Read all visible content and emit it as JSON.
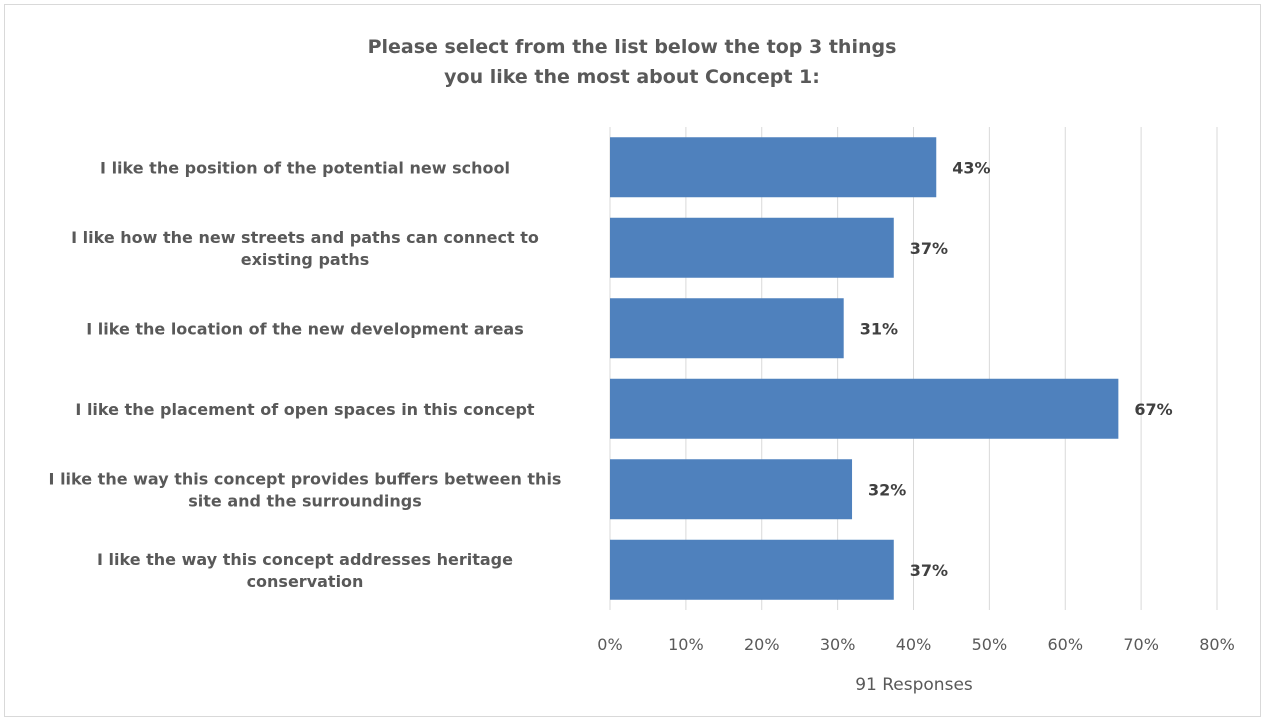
{
  "chart_data": {
    "type": "bar",
    "orientation": "horizontal",
    "title": [
      "Please select from the list below the top 3 things",
      "you like the most about Concept 1:"
    ],
    "categories": [
      [
        "I like the position of the potential new school"
      ],
      [
        "I like how the new streets and paths can connect to",
        "existing paths"
      ],
      [
        "I like the location of the new development areas"
      ],
      [
        "I like the placement of open spaces in this concept"
      ],
      [
        "I like the way this concept provides buffers between this",
        "site and the surroundings"
      ],
      [
        "I like the way this concept addresses heritage",
        "conservation"
      ]
    ],
    "values": [
      43,
      37.4,
      30.8,
      67,
      31.9,
      37.4
    ],
    "data_labels": [
      "43%",
      "37%",
      "31%",
      "67%",
      "32%",
      "37%"
    ],
    "xlim": [
      0,
      80
    ],
    "x_ticks": [
      0,
      10,
      20,
      30,
      40,
      50,
      60,
      70,
      80
    ],
    "x_tick_labels": [
      "0%",
      "10%",
      "20%",
      "30%",
      "40%",
      "50%",
      "60%",
      "70%",
      "80%"
    ],
    "xlabel": "91 Responses",
    "grid": true,
    "bar_color": "#4f81bd"
  }
}
